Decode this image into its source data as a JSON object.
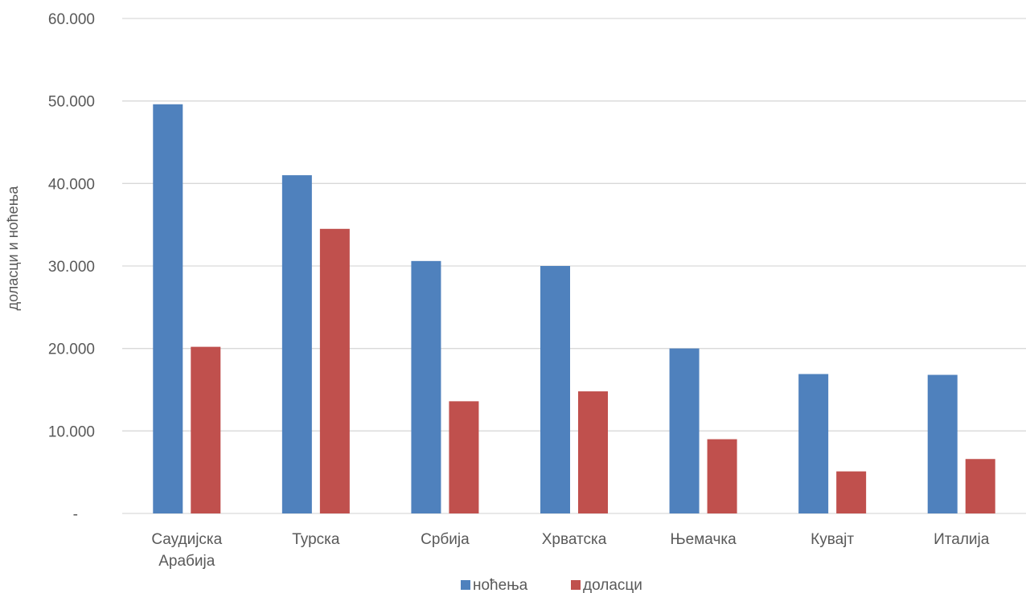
{
  "chart_data": {
    "type": "bar",
    "title": "",
    "xlabel": "",
    "ylabel": "доласци и ноћења",
    "ylim": [
      0,
      60000
    ],
    "y_ticks": [
      {
        "value": 0,
        "label": "-"
      },
      {
        "value": 10000,
        "label": "10.000"
      },
      {
        "value": 20000,
        "label": "20.000"
      },
      {
        "value": 30000,
        "label": "30.000"
      },
      {
        "value": 40000,
        "label": "40.000"
      },
      {
        "value": 50000,
        "label": "50.000"
      },
      {
        "value": 60000,
        "label": "60.000"
      }
    ],
    "categories": [
      [
        "Саудијска",
        "Арабија"
      ],
      [
        "Турска"
      ],
      [
        "Србија"
      ],
      [
        "Хрватска"
      ],
      [
        "Њемачка"
      ],
      [
        "Кувајт"
      ],
      [
        "Италија"
      ]
    ],
    "series": [
      {
        "name": "ноћења",
        "color": "#4F81BD",
        "values": [
          49600,
          41000,
          30600,
          30000,
          20000,
          16900,
          16800
        ]
      },
      {
        "name": "доласци",
        "color": "#C0504D",
        "values": [
          20200,
          34500,
          13600,
          14800,
          9000,
          5100,
          6600
        ]
      }
    ],
    "grid": true,
    "gridline_color": "#D9D9D9",
    "legend_position": "bottom"
  }
}
